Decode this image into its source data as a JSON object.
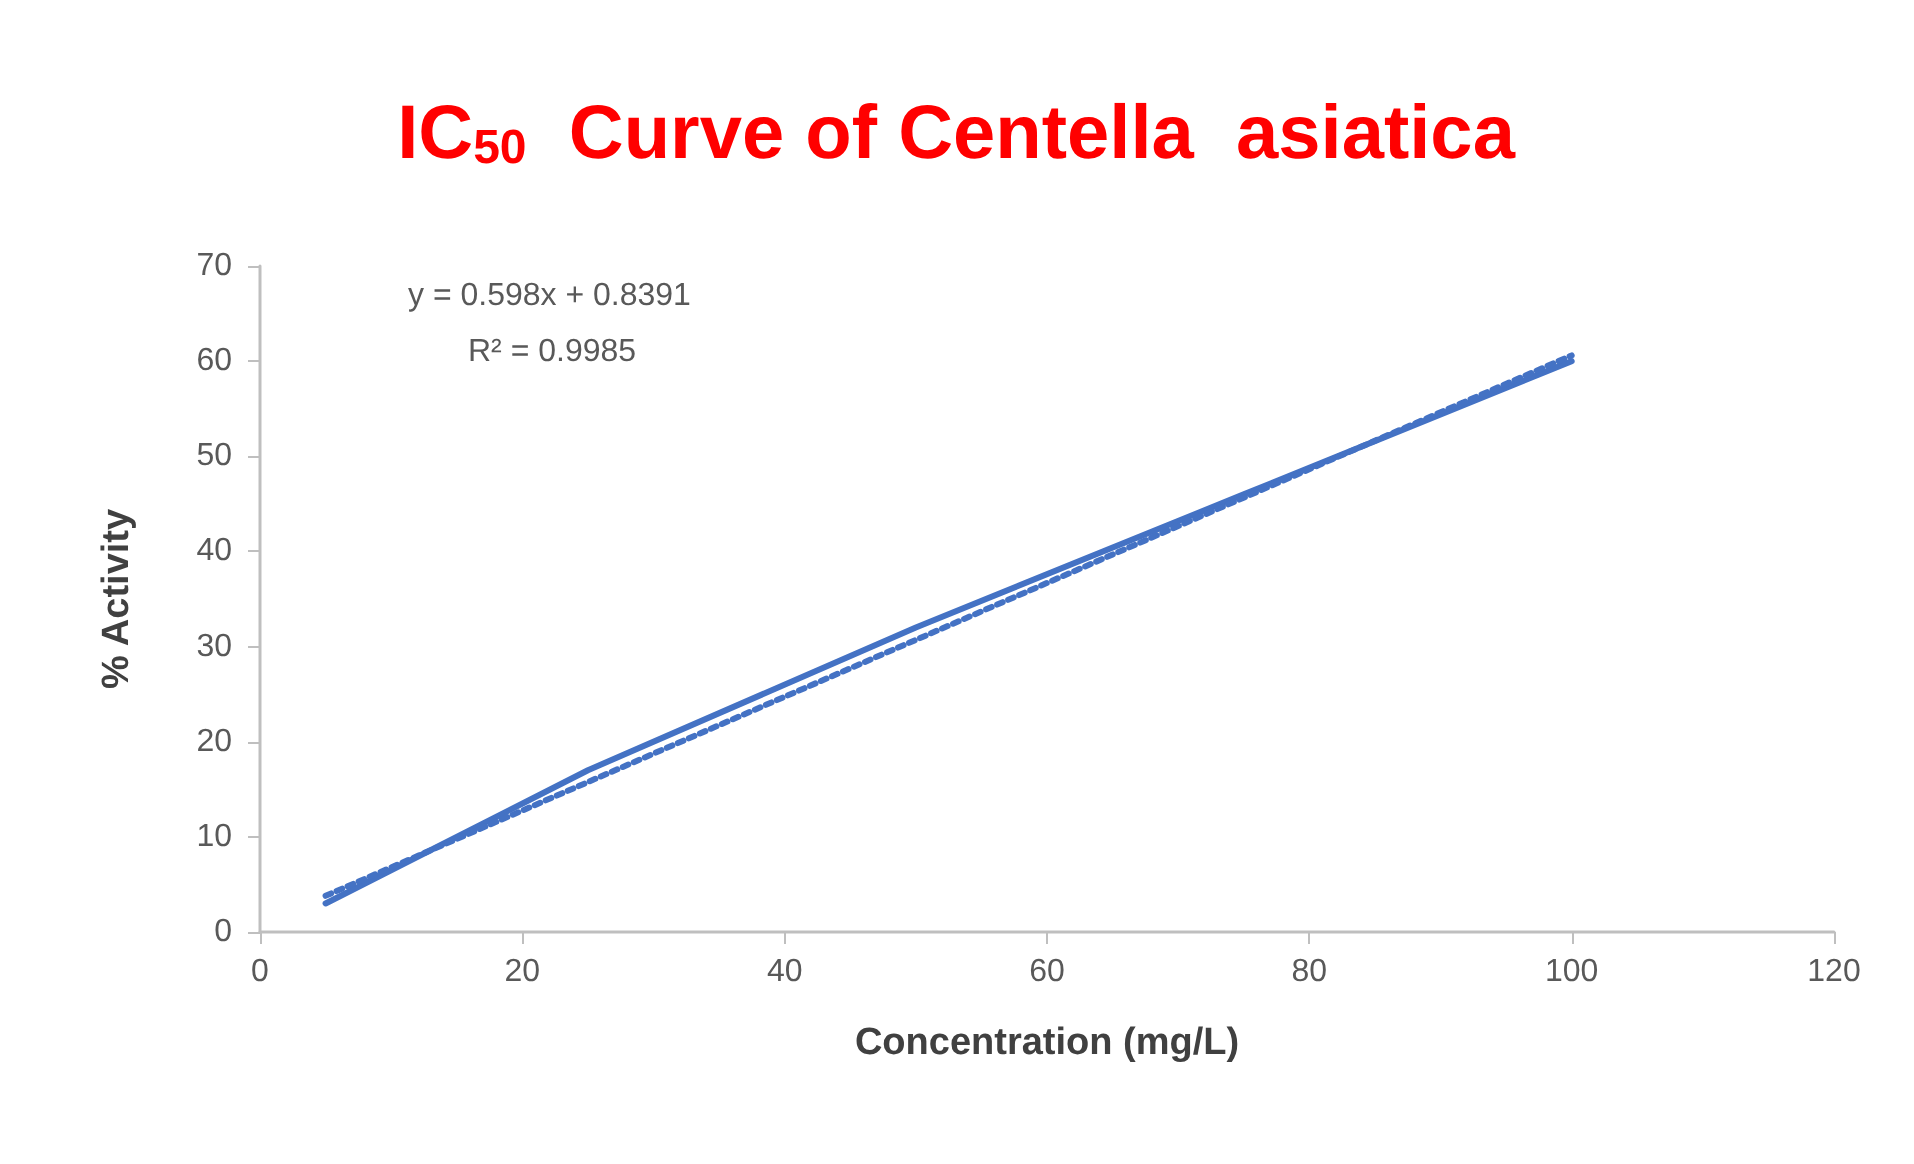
{
  "chart_data": {
    "type": "line",
    "title": "IC$_{50}$  Curve of Centella  asiatica",
    "xlabel": "Concentration (mg/L)",
    "ylabel": "% Activity",
    "annotations": [
      "y = 0.598x + 0.8391",
      "R² = 0.9985"
    ],
    "xlim": [
      0,
      120
    ],
    "xticks": [
      0,
      20,
      40,
      60,
      80,
      100,
      120
    ],
    "ylim": [
      0,
      70
    ],
    "yticks": [
      0,
      10,
      20,
      30,
      40,
      50,
      60,
      70
    ],
    "grid": false,
    "marker": "none",
    "series": [
      {
        "color": "#4472c4",
        "x": [
          5,
          25,
          50,
          75,
          100
        ],
        "values": [
          3,
          17,
          32,
          46,
          60
        ],
        "line_style": "solid"
      },
      {
        "color": "#4472c4",
        "x": [
          5,
          100
        ],
        "values": [
          3.8,
          60.6
        ],
        "line_style": "dotted"
      }
    ]
  }
}
